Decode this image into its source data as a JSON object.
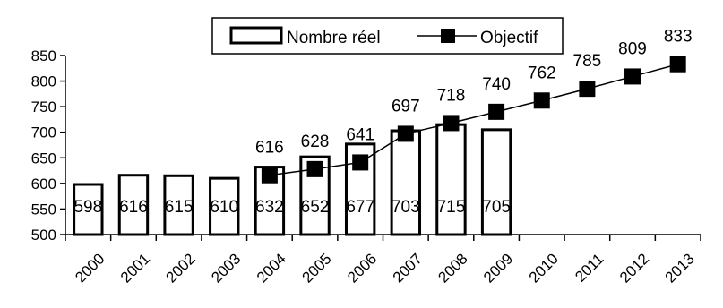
{
  "chart_data": {
    "type": "bar",
    "title": "",
    "xlabel": "",
    "ylabel": "",
    "categories": [
      "2000",
      "2001",
      "2002",
      "2003",
      "2004",
      "2005",
      "2006",
      "2007",
      "2008",
      "2009",
      "2010",
      "2011",
      "2012",
      "2013"
    ],
    "ylim": [
      500,
      850
    ],
    "yticks": [
      500,
      550,
      600,
      650,
      700,
      750,
      800,
      850
    ],
    "grid": false,
    "legend_position": "top-center",
    "series": [
      {
        "name": "Nombre réel",
        "type": "bar",
        "color": "#ffffff",
        "values": [
          598,
          616,
          615,
          610,
          632,
          652,
          677,
          703,
          715,
          705,
          null,
          null,
          null,
          null
        ],
        "labels": [
          "598",
          "616",
          "615",
          "610",
          "632",
          "652",
          "677",
          "703",
          "715",
          "705",
          null,
          null,
          null,
          null
        ]
      },
      {
        "name": "Objectif",
        "type": "line",
        "color": "#000000",
        "marker": "square",
        "values": [
          null,
          null,
          null,
          null,
          616,
          628,
          641,
          697,
          718,
          740,
          762,
          785,
          809,
          833
        ],
        "labels": [
          null,
          null,
          null,
          null,
          "616",
          "628",
          "641",
          "697",
          "718",
          "740",
          "762",
          "785",
          "809",
          "833"
        ]
      }
    ]
  }
}
